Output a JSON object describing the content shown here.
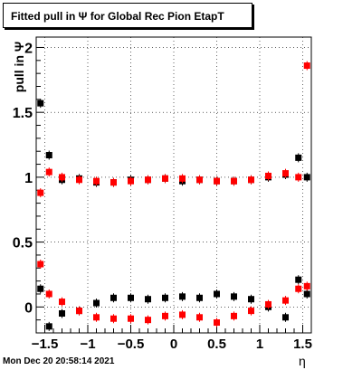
{
  "title": "Fitted pull in  Ψ  for Global Rec Pion EtapT",
  "timestamp": "Mon Dec 20 20:58:14 2021",
  "chart_data": {
    "type": "scatter",
    "title": "Fitted pull in  Ψ  for Global Rec Pion EtapT",
    "xlabel": "η",
    "ylabel": "pull in  Ψ",
    "xlim": [
      -1.6,
      1.6
    ],
    "ylim": [
      -0.2,
      2.08
    ],
    "xticks": [
      -1.5,
      -1,
      -0.5,
      0,
      0.5,
      1,
      1.5
    ],
    "xtick_labels": [
      "−1.5",
      "−1",
      "−0.5",
      "0",
      "0.5",
      "1",
      "1.5"
    ],
    "yticks": [
      0,
      0.5,
      1,
      1.5,
      2
    ],
    "ytick_labels": [
      "0",
      "0.5",
      "1",
      "1.5",
      "2"
    ],
    "grid": true,
    "series": [
      {
        "color": "#000000",
        "x": [
          -1.55,
          -1.45,
          -1.3,
          -1.1,
          -0.9,
          -0.7,
          -0.5,
          -0.3,
          -0.1,
          0.1,
          0.3,
          0.5,
          0.7,
          0.9,
          1.1,
          1.3,
          1.45,
          1.55
        ],
        "y": [
          1.57,
          1.17,
          0.98,
          0.99,
          0.96,
          0.96,
          0.98,
          0.98,
          0.99,
          0.97,
          0.98,
          0.97,
          0.97,
          0.98,
          1.0,
          1.02,
          1.15,
          1.0
        ]
      },
      {
        "color": "#ff0000",
        "x": [
          -1.55,
          -1.45,
          -1.3,
          -1.1,
          -0.9,
          -0.7,
          -0.5,
          -0.3,
          -0.1,
          0.1,
          0.3,
          0.5,
          0.7,
          0.9,
          1.1,
          1.3,
          1.45,
          1.55
        ],
        "y": [
          0.88,
          1.04,
          1.0,
          0.98,
          0.97,
          0.96,
          0.97,
          0.98,
          0.99,
          0.99,
          0.98,
          0.97,
          0.97,
          0.98,
          1.01,
          1.03,
          1.0,
          1.86
        ]
      },
      {
        "color": "#000000",
        "x": [
          -1.55,
          -1.45,
          -1.3,
          -1.1,
          -0.9,
          -0.7,
          -0.5,
          -0.3,
          -0.1,
          0.1,
          0.3,
          0.5,
          0.7,
          0.9,
          1.1,
          1.3,
          1.45,
          1.55
        ],
        "y": [
          0.14,
          -0.15,
          -0.05,
          -0.03,
          0.03,
          0.07,
          0.07,
          0.06,
          0.07,
          0.08,
          0.07,
          0.1,
          0.08,
          0.06,
          0.0,
          -0.08,
          0.21,
          0.1
        ]
      },
      {
        "color": "#ff0000",
        "x": [
          -1.55,
          -1.45,
          -1.3,
          -1.1,
          -0.9,
          -0.7,
          -0.5,
          -0.3,
          -0.1,
          0.1,
          0.3,
          0.5,
          0.7,
          0.9,
          1.1,
          1.3,
          1.45,
          1.55
        ],
        "y": [
          0.33,
          0.1,
          0.04,
          -0.03,
          -0.08,
          -0.09,
          -0.09,
          -0.1,
          -0.07,
          -0.06,
          -0.08,
          -0.12,
          -0.07,
          -0.03,
          0.02,
          0.05,
          0.14,
          0.16
        ]
      }
    ]
  }
}
